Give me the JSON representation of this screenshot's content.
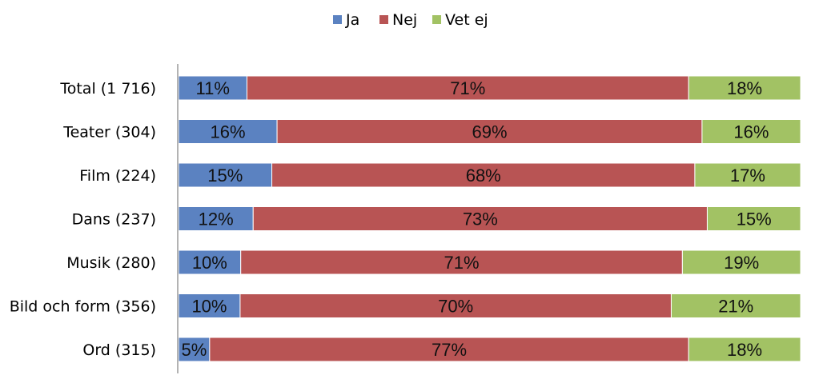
{
  "chart_data": {
    "type": "bar",
    "orientation": "horizontal",
    "stacked": "percent",
    "categories": [
      "Total (1 716)",
      "Teater (304)",
      "Film (224)",
      "Dans (237)",
      "Musik (280)",
      "Bild och form (356)",
      "Ord (315)"
    ],
    "series": [
      {
        "name": "Ja",
        "color": "#5b82c1",
        "values": [
          11,
          16,
          15,
          12,
          10,
          10,
          5
        ],
        "labels": [
          "11%",
          "16%",
          "15%",
          "12%",
          "10%",
          "10%",
          "5%"
        ]
      },
      {
        "name": "Nej",
        "color": "#b85454",
        "values": [
          71,
          69,
          68,
          73,
          71,
          70,
          77
        ],
        "labels": [
          "71%",
          "69%",
          "68%",
          "73%",
          "71%",
          "70%",
          "77%"
        ]
      },
      {
        "name": "Vet ej",
        "color": "#a2c264",
        "values": [
          18,
          16,
          17,
          15,
          19,
          21,
          18
        ],
        "labels": [
          "18%",
          "16%",
          "17%",
          "15%",
          "19%",
          "21%",
          "18%"
        ]
      }
    ],
    "xlim": [
      0,
      100
    ],
    "legend_position": "top",
    "grid": false
  }
}
